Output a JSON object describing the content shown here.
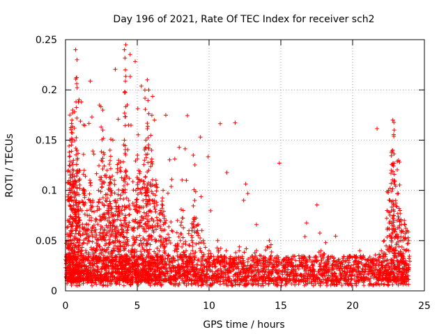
{
  "chart_data": {
    "type": "scatter",
    "title": "Day 196 of 2021, Rate Of TEC Index for receiver sch2",
    "xlabel": "GPS time / hours",
    "ylabel": "ROTI / TECUs",
    "xlim": [
      0,
      25
    ],
    "ylim": [
      0,
      0.25
    ],
    "xticks": [
      0,
      5,
      10,
      15,
      20,
      25
    ],
    "xtick_labels": [
      "0",
      "5",
      "10",
      "15",
      "20",
      "25"
    ],
    "yticks": [
      0,
      0.05,
      0.1,
      0.15,
      0.2,
      0.25
    ],
    "ytick_labels": [
      "0",
      "0.05",
      "0.1",
      "0.15",
      "0.2",
      "0.25"
    ],
    "grid": true,
    "marker": "+",
    "color": "#ff0000",
    "series": [
      {
        "name": "ROTI",
        "x": [
          0.05,
          0.1,
          0.15,
          0.2,
          0.25,
          0.3,
          0.35,
          0.4,
          0.45,
          0.5,
          0.55,
          0.6,
          0.65,
          0.7,
          0.75,
          0.8,
          0.85,
          0.9,
          0.95,
          1.0,
          1.1,
          1.2,
          1.3,
          1.4,
          1.5,
          1.6,
          1.7,
          1.8,
          1.9,
          2.0,
          2.1,
          2.2,
          2.3,
          2.4,
          2.5,
          2.6,
          2.7,
          2.8,
          2.9,
          3.0,
          3.1,
          3.2,
          3.3,
          3.4,
          3.5,
          3.6,
          3.7,
          3.8,
          3.9,
          4.0,
          4.1,
          4.2,
          4.3,
          4.4,
          4.5,
          4.6,
          4.7,
          4.8,
          4.9,
          5.0,
          5.1,
          5.2,
          5.3,
          5.4,
          5.5,
          5.6,
          5.7,
          5.8,
          5.9,
          6.0,
          6.1,
          6.2,
          6.3,
          6.4,
          6.5,
          6.6,
          6.7,
          6.8,
          6.9,
          7.0,
          7.2,
          7.4,
          7.6,
          7.8,
          8.0,
          8.2,
          8.4,
          8.6,
          8.8,
          9.0,
          9.2,
          9.4,
          9.6,
          9.8,
          10.0,
          10.3,
          10.6,
          10.9,
          11.2,
          11.5,
          11.8,
          12.1,
          12.4,
          12.7,
          13.0,
          13.3,
          13.6,
          13.9,
          14.2,
          14.5,
          14.8,
          15.1,
          15.4,
          15.7,
          16.0,
          16.3,
          16.6,
          16.9,
          17.2,
          17.5,
          17.8,
          18.1,
          18.4,
          18.7,
          19.0,
          19.3,
          19.6,
          19.9,
          20.2,
          20.5,
          20.8,
          21.1,
          21.4,
          21.7,
          22.0,
          22.2,
          22.4,
          22.5,
          22.6,
          22.7,
          22.8,
          22.9,
          23.0,
          23.1,
          23.2,
          23.3,
          23.4,
          23.5,
          23.6,
          23.7,
          23.8,
          23.9,
          0.7,
          0.8,
          4.1,
          4.2,
          5.7,
          5.8,
          9.4,
          8.9,
          13.3,
          0.3,
          0.5,
          1.1,
          2.6,
          3.3,
          4.3,
          6.2,
          22.8,
          22.9
        ],
        "y": [
          0.03,
          0.05,
          0.07,
          0.12,
          0.09,
          0.15,
          0.06,
          0.1,
          0.17,
          0.08,
          0.13,
          0.04,
          0.11,
          0.06,
          0.09,
          0.14,
          0.05,
          0.08,
          0.12,
          0.07,
          0.04,
          0.1,
          0.12,
          0.06,
          0.08,
          0.05,
          0.11,
          0.07,
          0.09,
          0.06,
          0.04,
          0.08,
          0.1,
          0.07,
          0.13,
          0.16,
          0.06,
          0.09,
          0.12,
          0.08,
          0.14,
          0.1,
          0.07,
          0.11,
          0.05,
          0.09,
          0.13,
          0.12,
          0.08,
          0.1,
          0.15,
          0.12,
          0.06,
          0.09,
          0.03,
          0.04,
          0.07,
          0.05,
          0.1,
          0.08,
          0.12,
          0.07,
          0.11,
          0.09,
          0.13,
          0.15,
          0.1,
          0.12,
          0.08,
          0.14,
          0.06,
          0.09,
          0.11,
          0.07,
          0.05,
          0.08,
          0.06,
          0.1,
          0.04,
          0.07,
          0.05,
          0.06,
          0.04,
          0.07,
          0.05,
          0.08,
          0.04,
          0.06,
          0.05,
          0.09,
          0.06,
          0.04,
          0.05,
          0.03,
          0.04,
          0.03,
          0.05,
          0.03,
          0.04,
          0.025,
          0.03,
          0.04,
          0.03,
          0.025,
          0.03,
          0.04,
          0.025,
          0.03,
          0.05,
          0.03,
          0.025,
          0.02,
          0.03,
          0.025,
          0.02,
          0.025,
          0.03,
          0.02,
          0.025,
          0.03,
          0.04,
          0.025,
          0.02,
          0.03,
          0.025,
          0.02,
          0.03,
          0.025,
          0.03,
          0.04,
          0.025,
          0.03,
          0.025,
          0.03,
          0.04,
          0.05,
          0.08,
          0.1,
          0.09,
          0.12,
          0.14,
          0.11,
          0.09,
          0.07,
          0.13,
          0.08,
          0.06,
          0.05,
          0.07,
          0.04,
          0.06,
          0.05,
          0.24,
          0.23,
          0.24,
          0.245,
          0.21,
          0.2,
          0.153,
          0.135,
          0.066,
          0.175,
          0.18,
          0.188,
          0.18,
          0.15,
          0.185,
          0.17,
          0.17,
          0.16
        ],
        "baseline_noise": {
          "x_start": 0,
          "x_end": 24,
          "y_min": 0.005,
          "y_max": 0.035
        }
      }
    ]
  }
}
